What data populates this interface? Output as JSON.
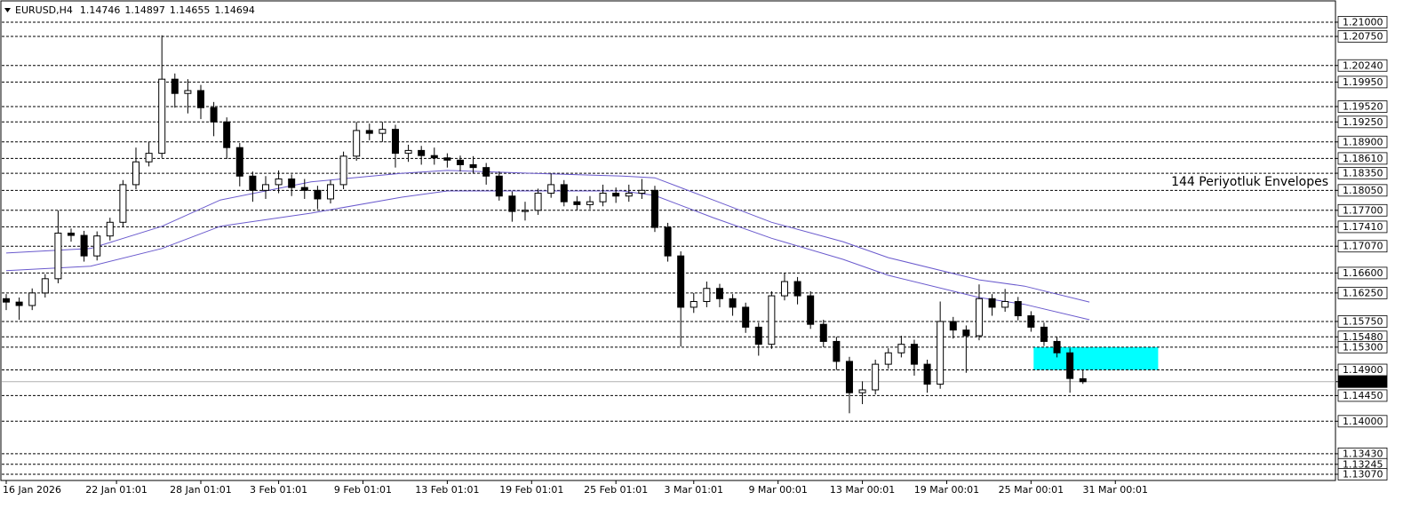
{
  "chart_data": {
    "type": "candlestick",
    "symbol": "EURUSD,H4",
    "annotation": "144 Periyotluk Envelopes",
    "annotation_color": "#483d8b",
    "up_color": "#ffffff",
    "down_color": "#000000",
    "xlim": [
      -0.48,
      102.47
    ],
    "ylim": [
      1.12961,
      1.21389
    ],
    "xticks": [
      {
        "value": 0,
        "label": "16 Jan 2026"
      },
      {
        "value": 8.5,
        "label": "22 Jan 01:01"
      },
      {
        "value": 15,
        "label": "28 Jan 01:01"
      },
      {
        "value": 21,
        "label": "3 Feb 01:01"
      },
      {
        "value": 27.5,
        "label": "9 Feb 01:01"
      },
      {
        "value": 34,
        "label": "13 Feb 01:01"
      },
      {
        "value": 40.5,
        "label": "19 Feb 01:01"
      },
      {
        "value": 47,
        "label": "25 Feb 01:01"
      },
      {
        "value": 53,
        "label": "3 Mar 01:01"
      },
      {
        "value": 59.5,
        "label": "9 Mar 00:01"
      },
      {
        "value": 66,
        "label": "13 Mar 00:01"
      },
      {
        "value": 72.5,
        "label": "19 Mar 00:01"
      },
      {
        "value": 79,
        "label": "25 Mar 00:01"
      },
      {
        "value": 85.5,
        "label": "31 Mar 00:01"
      }
    ],
    "yticks": [
      {
        "value": 1.21,
        "label": "1.21000"
      },
      {
        "value": 1.2075,
        "label": "1.20750"
      },
      {
        "value": 1.2024,
        "label": "1.20240"
      },
      {
        "value": 1.1995,
        "label": "1.19950"
      },
      {
        "value": 1.1952,
        "label": "1.19520"
      },
      {
        "value": 1.1925,
        "label": "1.19250"
      },
      {
        "value": 1.189,
        "label": "1.18900"
      },
      {
        "value": 1.1861,
        "label": "1.18610"
      },
      {
        "value": 1.1835,
        "label": "1.18350"
      },
      {
        "value": 1.1805,
        "label": "1.18050"
      },
      {
        "value": 1.177,
        "label": "1.17700"
      },
      {
        "value": 1.1741,
        "label": "1.17410"
      },
      {
        "value": 1.1707,
        "label": "1.17070"
      },
      {
        "value": 1.166,
        "label": "1.16600"
      },
      {
        "value": 1.1625,
        "label": "1.16250"
      },
      {
        "value": 1.1575,
        "label": "1.15750"
      },
      {
        "value": 1.1548,
        "label": "1.15480"
      },
      {
        "value": 1.153,
        "label": "1.15300"
      },
      {
        "value": 1.149,
        "label": "1.14900"
      },
      1.14694,
      {
        "value": 1.1445,
        "label": "1.14450"
      },
      {
        "value": 1.14,
        "label": "1.14000"
      },
      {
        "value": 1.1343,
        "label": "1.13430"
      },
      1.13245,
      {
        "value": 1.1307,
        "label": "1.13070"
      }
    ],
    "open": [
      1.1615,
      1.1609,
      1.1603,
      1.1625,
      1.165,
      1.173,
      1.1726,
      1.169,
      1.1725,
      1.1749,
      1.1815,
      1.1855,
      1.187,
      1.2,
      1.1975,
      1.198,
      1.195,
      1.1925,
      1.188,
      1.183,
      1.1805,
      1.1815,
      1.1825,
      1.181,
      1.1805,
      1.179,
      1.1815,
      1.1865,
      1.191,
      1.1905,
      1.1912,
      1.187,
      1.1875,
      1.1866,
      1.1862,
      1.1858,
      1.185,
      1.1845,
      1.183,
      1.1795,
      1.1768,
      1.177,
      1.18,
      1.1815,
      1.1785,
      1.178,
      1.1785,
      1.18,
      1.1795,
      1.18,
      1.1805,
      1.174,
      1.169,
      1.16,
      1.161,
      1.1633,
      1.1615,
      1.16,
      1.1565,
      1.1535,
      1.162,
      1.1645,
      1.162,
      1.157,
      1.154,
      1.1505,
      1.145,
      1.1455,
      1.15,
      1.152,
      1.1535,
      1.15,
      1.1465,
      1.1575,
      1.156,
      1.155,
      1.1615,
      1.16,
      1.161,
      1.1585,
      1.1565,
      1.154,
      1.152,
      1.14746
    ],
    "high": [
      1.1623,
      1.1617,
      1.1633,
      1.1658,
      1.177,
      1.1738,
      1.1734,
      1.1733,
      1.1757,
      1.1823,
      1.188,
      1.189,
      1.2077,
      1.201,
      1.2,
      1.199,
      1.196,
      1.1933,
      1.1888,
      1.1838,
      1.183,
      1.184,
      1.1833,
      1.1825,
      1.1813,
      1.1823,
      1.1873,
      1.1925,
      1.1922,
      1.1925,
      1.192,
      1.1885,
      1.1883,
      1.188,
      1.187,
      1.1866,
      1.1865,
      1.1853,
      1.1838,
      1.1803,
      1.1785,
      1.1808,
      1.1835,
      1.1823,
      1.1795,
      1.1795,
      1.1815,
      1.181,
      1.1815,
      1.1825,
      1.1813,
      1.1748,
      1.1698,
      1.1625,
      1.1645,
      1.1641,
      1.1623,
      1.1608,
      1.1573,
      1.1628,
      1.166,
      1.1653,
      1.1628,
      1.1578,
      1.1548,
      1.1513,
      1.147,
      1.1508,
      1.1528,
      1.155,
      1.1543,
      1.1508,
      1.161,
      1.1583,
      1.1568,
      1.164,
      1.1623,
      1.1632,
      1.1618,
      1.1593,
      1.1573,
      1.1548,
      1.1528,
      1.14897
    ],
    "low": [
      1.1595,
      1.1578,
      1.1595,
      1.1617,
      1.1642,
      1.1715,
      1.168,
      1.1682,
      1.1717,
      1.1741,
      1.1807,
      1.1847,
      1.1862,
      1.195,
      1.194,
      1.193,
      1.19,
      1.186,
      1.1812,
      1.1785,
      1.179,
      1.18,
      1.1795,
      1.179,
      1.1772,
      1.1782,
      1.1807,
      1.1857,
      1.1893,
      1.189,
      1.1845,
      1.1855,
      1.185,
      1.185,
      1.1845,
      1.1838,
      1.1835,
      1.1815,
      1.1787,
      1.175,
      1.1752,
      1.1762,
      1.1792,
      1.1777,
      1.177,
      1.1772,
      1.1777,
      1.1783,
      1.1785,
      1.179,
      1.1732,
      1.168,
      1.1531,
      1.159,
      1.16,
      1.16,
      1.1585,
      1.1555,
      1.1515,
      1.1527,
      1.1612,
      1.1605,
      1.1562,
      1.153,
      1.149,
      1.1414,
      1.143,
      1.1447,
      1.1492,
      1.1512,
      1.148,
      1.145,
      1.1457,
      1.1545,
      1.1485,
      1.1542,
      1.1585,
      1.1592,
      1.1577,
      1.1557,
      1.1532,
      1.1512,
      1.145,
      1.14655
    ],
    "close": [
      1.1609,
      1.1603,
      1.1625,
      1.165,
      1.173,
      1.1726,
      1.169,
      1.1725,
      1.1749,
      1.1815,
      1.1855,
      1.187,
      1.2,
      1.1975,
      1.198,
      1.195,
      1.1925,
      1.188,
      1.183,
      1.1805,
      1.1815,
      1.1825,
      1.181,
      1.1805,
      1.179,
      1.1815,
      1.1865,
      1.191,
      1.1905,
      1.1912,
      1.187,
      1.1875,
      1.1866,
      1.1862,
      1.1858,
      1.185,
      1.1845,
      1.183,
      1.1795,
      1.1768,
      1.177,
      1.18,
      1.1815,
      1.1785,
      1.178,
      1.1785,
      1.18,
      1.1795,
      1.18,
      1.1805,
      1.174,
      1.169,
      1.16,
      1.161,
      1.1633,
      1.1615,
      1.16,
      1.1565,
      1.1535,
      1.162,
      1.1645,
      1.162,
      1.157,
      1.154,
      1.1505,
      1.145,
      1.1455,
      1.15,
      1.152,
      1.1535,
      1.15,
      1.1465,
      1.1575,
      1.156,
      1.155,
      1.1615,
      1.16,
      1.161,
      1.1585,
      1.1565,
      1.154,
      1.152,
      1.1475,
      1.14694
    ],
    "envelopes": [
      {
        "color": "#6a5acd",
        "x": [
          0,
          6.5,
          12,
          16.5,
          23.5,
          30.5,
          34,
          40.5,
          47.5,
          50,
          54.5,
          59,
          64.5,
          68,
          75,
          78.5,
          83.5
        ],
        "values": [
          1.1695,
          1.1703,
          1.1742,
          1.1788,
          1.182,
          1.1835,
          1.184,
          1.1835,
          1.183,
          1.1827,
          1.1788,
          1.1749,
          1.1715,
          1.1687,
          1.1648,
          1.1637,
          1.1609
        ]
      },
      {
        "color": "#6a5acd",
        "x": [
          0,
          6.5,
          12,
          16.5,
          23.5,
          30.5,
          34,
          40.5,
          47.5,
          50,
          54.5,
          59,
          64.5,
          68,
          75,
          78.5,
          83.5
        ],
        "values": [
          1.1664,
          1.1672,
          1.1703,
          1.1742,
          1.1765,
          1.1793,
          1.1804,
          1.1804,
          1.1804,
          1.1796,
          1.1757,
          1.1721,
          1.1684,
          1.1656,
          1.1617,
          1.1605,
          1.1578
        ]
      }
    ],
    "zone": {
      "color": "#00ffff",
      "x": [
        79.2,
        88.8
      ],
      "y": [
        1.153,
        1.149
      ]
    }
  }
}
